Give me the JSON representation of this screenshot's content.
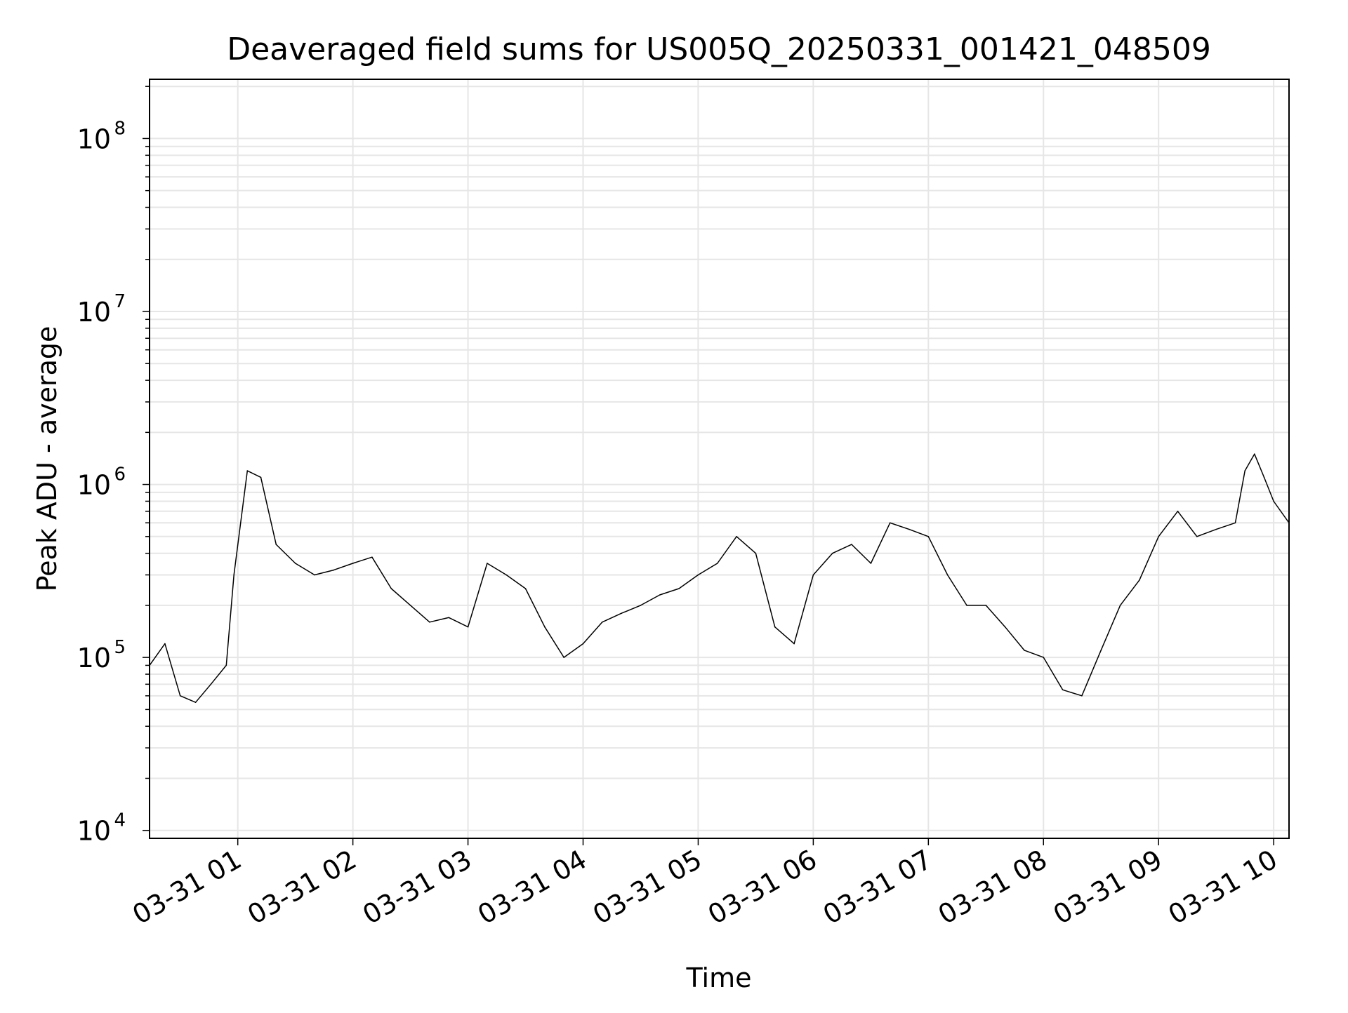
{
  "chart_data": {
    "type": "line",
    "title": "Deaveraged field sums for US005Q_20250331_001421_048509",
    "xlabel": "Time",
    "ylabel": "Peak ADU - average",
    "y_scale": "log",
    "ylim": [
      9000,
      220000000
    ],
    "xlim": [
      "2025-03-31 00:14",
      "2025-03-31 10:08"
    ],
    "x_ticks": [
      "03-31 01",
      "03-31 02",
      "03-31 03",
      "03-31 04",
      "03-31 05",
      "03-31 06",
      "03-31 07",
      "03-31 08",
      "03-31 09",
      "03-31 10"
    ],
    "y_ticks": [
      {
        "value": 10000,
        "base": "10",
        "exp": "4"
      },
      {
        "value": 100000,
        "base": "10",
        "exp": "5"
      },
      {
        "value": 1000000,
        "base": "10",
        "exp": "6"
      },
      {
        "value": 10000000,
        "base": "10",
        "exp": "7"
      },
      {
        "value": 100000000,
        "base": "10",
        "exp": "8"
      }
    ],
    "grid": true,
    "line_color": "#000000",
    "grid_color": "#e6e6e6",
    "series": [
      {
        "x": [
          "2025-03-31 00:14",
          "2025-03-31 00:22",
          "2025-03-31 00:30",
          "2025-03-31 00:38",
          "2025-03-31 00:46",
          "2025-03-31 00:54",
          "2025-03-31 00:58",
          "2025-03-31 01:05",
          "2025-03-31 01:12",
          "2025-03-31 01:20",
          "2025-03-31 01:30",
          "2025-03-31 01:40",
          "2025-03-31 01:50",
          "2025-03-31 02:00",
          "2025-03-31 02:10",
          "2025-03-31 02:20",
          "2025-03-31 02:30",
          "2025-03-31 02:40",
          "2025-03-31 02:50",
          "2025-03-31 03:00",
          "2025-03-31 03:10",
          "2025-03-31 03:20",
          "2025-03-31 03:30",
          "2025-03-31 03:40",
          "2025-03-31 03:50",
          "2025-03-31 04:00",
          "2025-03-31 04:10",
          "2025-03-31 04:20",
          "2025-03-31 04:30",
          "2025-03-31 04:40",
          "2025-03-31 04:50",
          "2025-03-31 05:00",
          "2025-03-31 05:10",
          "2025-03-31 05:20",
          "2025-03-31 05:30",
          "2025-03-31 05:40",
          "2025-03-31 05:50",
          "2025-03-31 06:00",
          "2025-03-31 06:10",
          "2025-03-31 06:20",
          "2025-03-31 06:30",
          "2025-03-31 06:40",
          "2025-03-31 06:50",
          "2025-03-31 07:00",
          "2025-03-31 07:10",
          "2025-03-31 07:20",
          "2025-03-31 07:30",
          "2025-03-31 07:40",
          "2025-03-31 07:50",
          "2025-03-31 08:00",
          "2025-03-31 08:10",
          "2025-03-31 08:20",
          "2025-03-31 08:30",
          "2025-03-31 08:40",
          "2025-03-31 08:50",
          "2025-03-31 09:00",
          "2025-03-31 09:10",
          "2025-03-31 09:20",
          "2025-03-31 09:30",
          "2025-03-31 09:40",
          "2025-03-31 09:45",
          "2025-03-31 09:50",
          "2025-03-31 09:55",
          "2025-03-31 10:00",
          "2025-03-31 10:08"
        ],
        "y": [
          90000,
          120000,
          60000,
          55000,
          70000,
          90000,
          300000,
          1200000,
          1100000,
          450000,
          350000,
          300000,
          320000,
          350000,
          380000,
          250000,
          200000,
          160000,
          170000,
          150000,
          350000,
          300000,
          250000,
          150000,
          100000,
          120000,
          160000,
          180000,
          200000,
          230000,
          250000,
          300000,
          350000,
          500000,
          400000,
          150000,
          120000,
          300000,
          400000,
          450000,
          350000,
          600000,
          550000,
          500000,
          300000,
          200000,
          200000,
          150000,
          110000,
          100000,
          65000,
          60000,
          110000,
          200000,
          280000,
          500000,
          700000,
          500000,
          550000,
          600000,
          1200000,
          1500000,
          1100000,
          800000,
          600000
        ]
      }
    ]
  }
}
